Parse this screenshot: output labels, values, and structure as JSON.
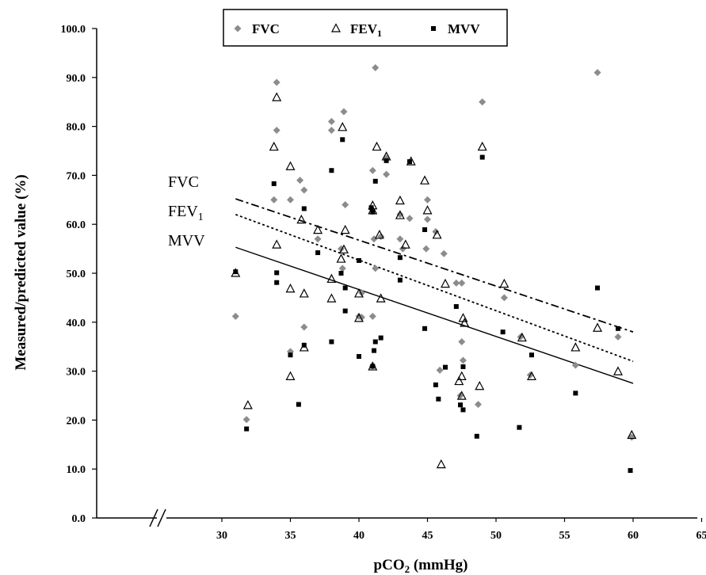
{
  "chart_data": {
    "type": "scatter",
    "xlabel": "pCO",
    "xlabel_sub": "2",
    "xlabel_unit": " (mmHg)",
    "ylabel": "Measured/predicted value (%)",
    "xlim": [
      30,
      65
    ],
    "ylim": [
      0,
      100
    ],
    "x_ticks": [
      "30",
      "35",
      "40",
      "45",
      "50",
      "55",
      "60",
      "65"
    ],
    "y_ticks": [
      "0.0",
      "10.0",
      "20.0",
      "30.0",
      "40.0",
      "50.0",
      "60.0",
      "70.0",
      "80.0",
      "90.0",
      "100.0"
    ],
    "axis_break": true,
    "legend_position": "top-center",
    "series": [
      {
        "name": "FVC",
        "marker": "diamond",
        "color": "#8c8c8c",
        "points": [
          [
            31,
            41.2
          ],
          [
            31.8,
            20.1
          ],
          [
            33.8,
            65
          ],
          [
            34,
            89
          ],
          [
            34,
            79.2
          ],
          [
            35,
            65
          ],
          [
            35,
            34
          ],
          [
            35.7,
            69
          ],
          [
            36,
            67
          ],
          [
            36,
            39
          ],
          [
            37,
            57
          ],
          [
            38,
            79.2
          ],
          [
            38,
            81
          ],
          [
            38.7,
            55
          ],
          [
            38.8,
            51
          ],
          [
            38.9,
            83
          ],
          [
            39,
            64
          ],
          [
            40,
            41.2
          ],
          [
            40.2,
            46
          ],
          [
            40.2,
            41
          ],
          [
            41,
            41.2
          ],
          [
            41,
            71
          ],
          [
            41,
            31
          ],
          [
            41.1,
            57
          ],
          [
            41.2,
            51
          ],
          [
            41.2,
            92
          ],
          [
            41.6,
            57.5
          ],
          [
            42,
            70.2
          ],
          [
            42,
            73.5
          ],
          [
            43,
            57
          ],
          [
            43,
            62
          ],
          [
            43.2,
            55
          ],
          [
            43.7,
            61.2
          ],
          [
            44.9,
            55
          ],
          [
            45,
            65
          ],
          [
            45,
            61
          ],
          [
            45.6,
            58.5
          ],
          [
            45.9,
            30.2
          ],
          [
            46.2,
            54
          ],
          [
            47.1,
            48
          ],
          [
            47.4,
            25
          ],
          [
            47.5,
            48
          ],
          [
            47.5,
            36
          ],
          [
            47.6,
            32.2
          ],
          [
            48.7,
            23.2
          ],
          [
            49,
            85
          ],
          [
            50.6,
            45
          ],
          [
            51.8,
            37
          ],
          [
            52.5,
            29.2
          ],
          [
            55.8,
            31.2
          ],
          [
            57.4,
            91
          ],
          [
            58.9,
            37
          ],
          [
            59.9,
            16.5
          ]
        ]
      },
      {
        "name": "FEV1",
        "marker": "triangle",
        "color": "#000000",
        "points": [
          [
            31,
            50
          ],
          [
            31.9,
            23
          ],
          [
            33.8,
            75.8
          ],
          [
            34,
            85.9
          ],
          [
            34,
            55.8
          ],
          [
            35,
            71.8
          ],
          [
            35,
            46.8
          ],
          [
            35,
            28.9
          ],
          [
            35.8,
            60.9
          ],
          [
            36,
            45.8
          ],
          [
            36,
            34.8
          ],
          [
            37,
            58.8
          ],
          [
            38,
            48.8
          ],
          [
            38,
            44.8
          ],
          [
            38.7,
            52.9
          ],
          [
            38.8,
            79.8
          ],
          [
            38.9,
            54.8
          ],
          [
            39,
            58.8
          ],
          [
            40,
            45.8
          ],
          [
            40,
            40.8
          ],
          [
            41,
            62.8
          ],
          [
            41,
            63.8
          ],
          [
            41,
            30.9
          ],
          [
            41.3,
            75.8
          ],
          [
            41.5,
            57.8
          ],
          [
            41.6,
            44.8
          ],
          [
            42,
            73.8
          ],
          [
            43,
            64.8
          ],
          [
            43,
            61.8
          ],
          [
            43.4,
            55.8
          ],
          [
            43.8,
            72.8
          ],
          [
            44.8,
            68.9
          ],
          [
            45,
            62.8
          ],
          [
            45.7,
            57.8
          ],
          [
            46,
            10.9
          ],
          [
            46.3,
            47.8
          ],
          [
            47.3,
            27.9
          ],
          [
            47.5,
            28.9
          ],
          [
            47.5,
            24.9
          ],
          [
            47.6,
            40.8
          ],
          [
            47.7,
            39.8
          ],
          [
            48.8,
            26.9
          ],
          [
            49,
            75.8
          ],
          [
            50.6,
            47.8
          ],
          [
            51.9,
            36.8
          ],
          [
            52.6,
            28.9
          ],
          [
            55.8,
            34.8
          ],
          [
            57.4,
            38.8
          ],
          [
            58.9,
            29.9
          ],
          [
            59.9,
            16.9
          ]
        ]
      },
      {
        "name": "MVV",
        "marker": "square",
        "color": "#000000",
        "points": [
          [
            31,
            50.3
          ],
          [
            31.8,
            18.2
          ],
          [
            33.8,
            68.3
          ],
          [
            34,
            50.1
          ],
          [
            34,
            48.1
          ],
          [
            35,
            33.3
          ],
          [
            35.6,
            23.2
          ],
          [
            36,
            63.2
          ],
          [
            36,
            35.3
          ],
          [
            37,
            54.2
          ],
          [
            38,
            71
          ],
          [
            38,
            36
          ],
          [
            38.7,
            50
          ],
          [
            38.8,
            77.3
          ],
          [
            39,
            47
          ],
          [
            39,
            42.3
          ],
          [
            40,
            52.6
          ],
          [
            40,
            33
          ],
          [
            40.9,
            63.4
          ],
          [
            41,
            62.5
          ],
          [
            41,
            31
          ],
          [
            41.1,
            34.2
          ],
          [
            41.2,
            36
          ],
          [
            41.2,
            68.8
          ],
          [
            41.6,
            36.8
          ],
          [
            42,
            73
          ],
          [
            43,
            48.6
          ],
          [
            43,
            53.2
          ],
          [
            43.7,
            72.8
          ],
          [
            44.8,
            58.9
          ],
          [
            44.8,
            38.7
          ],
          [
            45.6,
            27.2
          ],
          [
            45.8,
            24.3
          ],
          [
            46.3,
            30.8
          ],
          [
            47.1,
            43.2
          ],
          [
            47.4,
            23.1
          ],
          [
            47.6,
            22.1
          ],
          [
            47.6,
            30.9
          ],
          [
            48.6,
            16.7
          ],
          [
            49,
            73.7
          ],
          [
            50.5,
            38
          ],
          [
            51.7,
            18.5
          ],
          [
            52.6,
            33.3
          ],
          [
            55.8,
            25.5
          ],
          [
            57.4,
            47
          ],
          [
            58.9,
            38.7
          ],
          [
            59.8,
            9.7
          ]
        ]
      }
    ],
    "trendlines": [
      {
        "name": "FVC",
        "label": "FVC",
        "label_sub": "",
        "style": "dashdot",
        "x": [
          31,
          60
        ],
        "y": [
          65.2,
          38
        ]
      },
      {
        "name": "FEV1",
        "label": "FEV",
        "label_sub": "1",
        "style": "dotted",
        "x": [
          31,
          60
        ],
        "y": [
          62,
          32
        ]
      },
      {
        "name": "MVV",
        "label": "MVV",
        "label_sub": "",
        "style": "solid",
        "x": [
          31,
          60
        ],
        "y": [
          55.3,
          27.5
        ]
      }
    ],
    "legend": [
      {
        "name": "FVC",
        "label": "FVC",
        "sub": "",
        "marker": "diamond",
        "color": "#8c8c8c"
      },
      {
        "name": "FEV1",
        "label": "FEV",
        "sub": "1",
        "marker": "triangle",
        "color": "#000000"
      },
      {
        "name": "MVV",
        "label": "MVV",
        "sub": "",
        "marker": "square",
        "color": "#000000"
      }
    ]
  }
}
